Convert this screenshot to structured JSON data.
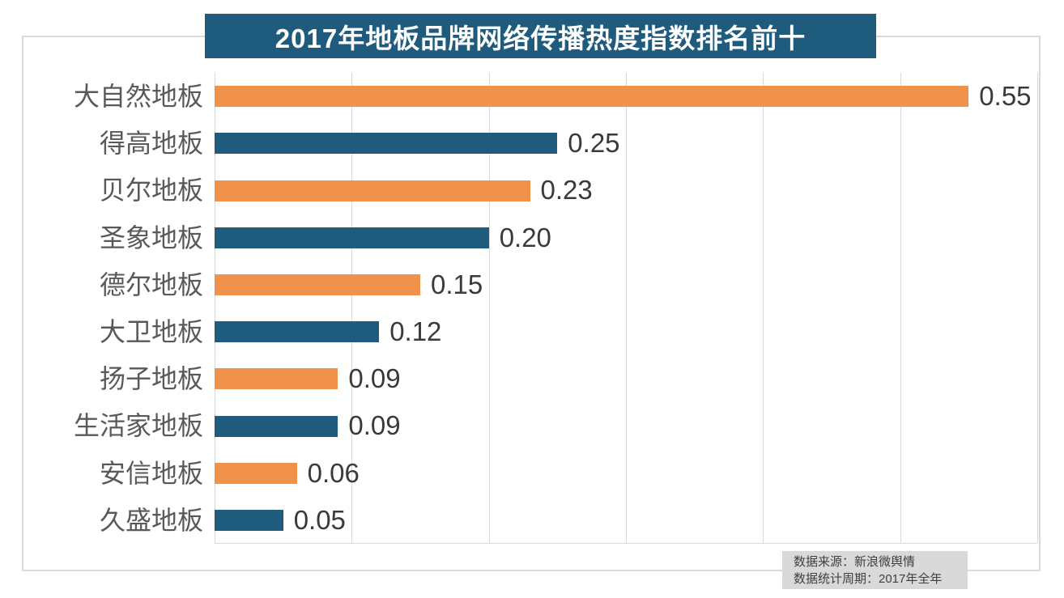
{
  "chart_data": {
    "type": "bar",
    "orientation": "horizontal",
    "title": "2017年地板品牌网络传播热度指数排名前十",
    "categories": [
      "大自然地板",
      "得高地板",
      "贝尔地板",
      "圣象地板",
      "德尔地板",
      "大卫地板",
      "扬子地板",
      "生活家地板",
      "安信地板",
      "久盛地板"
    ],
    "values": [
      0.55,
      0.25,
      0.23,
      0.2,
      0.15,
      0.12,
      0.09,
      0.09,
      0.06,
      0.05
    ],
    "value_labels": [
      "0.55",
      "0.25",
      "0.23",
      "0.20",
      "0.15",
      "0.12",
      "0.09",
      "0.09",
      "0.06",
      "0.05"
    ],
    "xlim": [
      0,
      0.6
    ],
    "grid_interval": 0.1,
    "grid_orientation": "vertical",
    "legend": "none",
    "bar_color_odd_rows": "#f0914c",
    "bar_color_even_rows": "#1f5b7c"
  },
  "title_banner": {
    "bg_color": "#1f5b7c",
    "text_color": "#ffffff"
  },
  "footer": {
    "source": "数据来源：新浪微舆情",
    "period": "数据统计周期：2017年全年",
    "bg_color": "#d9d9d9"
  },
  "colors": {
    "gridline": "#d9d9d9",
    "frame_border": "#d9d9d9",
    "category_label": "#595959",
    "value_label": "#3a3a3a",
    "background": "#ffffff"
  }
}
